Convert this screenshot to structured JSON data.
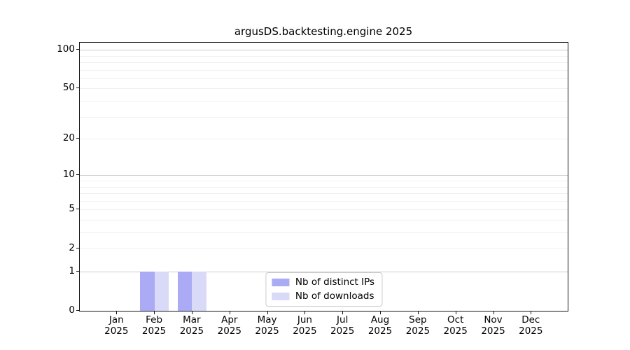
{
  "chart_data": {
    "type": "bar",
    "title": "argusDS.backtesting.engine 2025",
    "x_months": [
      "Jan",
      "Feb",
      "Mar",
      "Apr",
      "May",
      "Jun",
      "Jul",
      "Aug",
      "Sep",
      "Oct",
      "Nov",
      "Dec"
    ],
    "x_year": "2025",
    "series": [
      {
        "name": "Nb of distinct IPs",
        "slug": "distinct-ips",
        "color": "#aaaaf5",
        "values": [
          0,
          1,
          1,
          0,
          0,
          0,
          0,
          0,
          0,
          0,
          0,
          0
        ]
      },
      {
        "name": "Nb of downloads",
        "slug": "downloads",
        "color": "#d9d9f8",
        "values": [
          0,
          1,
          1,
          0,
          0,
          0,
          0,
          0,
          0,
          0,
          0,
          0
        ]
      }
    ],
    "y_axis": {
      "scale": "log1p",
      "tick_values": [
        0,
        1,
        2,
        5,
        10,
        20,
        50,
        100
      ],
      "tick_labels": [
        "0",
        "1",
        "2",
        "5",
        "10",
        "20",
        "50",
        "100"
      ],
      "max": 113,
      "major_gridlines": [
        1,
        10,
        100
      ],
      "minor_gridlines": [
        2,
        3,
        4,
        5,
        6,
        7,
        8,
        9,
        20,
        30,
        40,
        50,
        60,
        70,
        80,
        90
      ]
    },
    "grid": "horizontal-only",
    "legend_position": "lower center inside plot"
  },
  "colors": {
    "background": "#ffffff",
    "spine": "#141414",
    "major_grid": "#cccccc",
    "minor_grid": "#f0f0f0",
    "legend_border": "#cccccc",
    "bar_distinct_ips": "#aaaaf5",
    "bar_downloads": "#d9d9f8"
  }
}
